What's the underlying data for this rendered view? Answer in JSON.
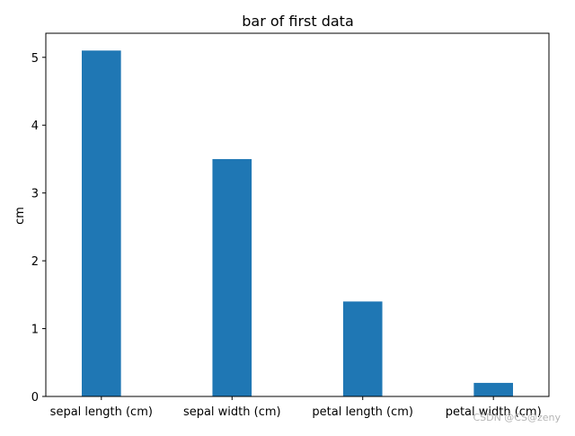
{
  "chart_data": {
    "type": "bar",
    "title": "bar of first data",
    "xlabel": "",
    "ylabel": "cm",
    "categories": [
      "sepal length (cm)",
      "sepal width (cm)",
      "petal length (cm)",
      "petal width (cm)"
    ],
    "values": [
      5.1,
      3.5,
      1.4,
      0.2
    ],
    "ylim": [
      0,
      5.355
    ],
    "yticks": [
      0,
      1,
      2,
      3,
      4,
      5
    ],
    "bar_color": "#1f77b4",
    "grid": false,
    "legend": "none"
  },
  "watermark": "CSDN @CS@zeny"
}
